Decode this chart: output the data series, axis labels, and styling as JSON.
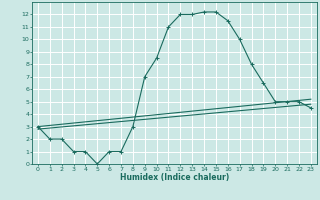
{
  "xlabel": "Humidex (Indice chaleur)",
  "ylabel": "",
  "bg_color": "#cce8e5",
  "grid_color": "#ffffff",
  "line_color": "#1a6b5e",
  "xlim": [
    -0.5,
    23.5
  ],
  "ylim": [
    0,
    13
  ],
  "xticks": [
    0,
    1,
    2,
    3,
    4,
    5,
    6,
    7,
    8,
    9,
    10,
    11,
    12,
    13,
    14,
    15,
    16,
    17,
    18,
    19,
    20,
    21,
    22,
    23
  ],
  "yticks": [
    0,
    1,
    2,
    3,
    4,
    5,
    6,
    7,
    8,
    9,
    10,
    11,
    12
  ],
  "series1_x": [
    0,
    1,
    2,
    3,
    4,
    5,
    6,
    7,
    8,
    9,
    10,
    11,
    12,
    13,
    14,
    15,
    16,
    17,
    18,
    19,
    20,
    21,
    22,
    23
  ],
  "series1_y": [
    3,
    2,
    2,
    1,
    1,
    0,
    1,
    1,
    3,
    7,
    8.5,
    11,
    12,
    12,
    12.2,
    12.2,
    11.5,
    10,
    8,
    6.5,
    5,
    5,
    5,
    4.5
  ],
  "series2_x": [
    0,
    23
  ],
  "series2_y": [
    3,
    5.2
  ],
  "series3_x": [
    0,
    23
  ],
  "series3_y": [
    2.8,
    4.8
  ]
}
